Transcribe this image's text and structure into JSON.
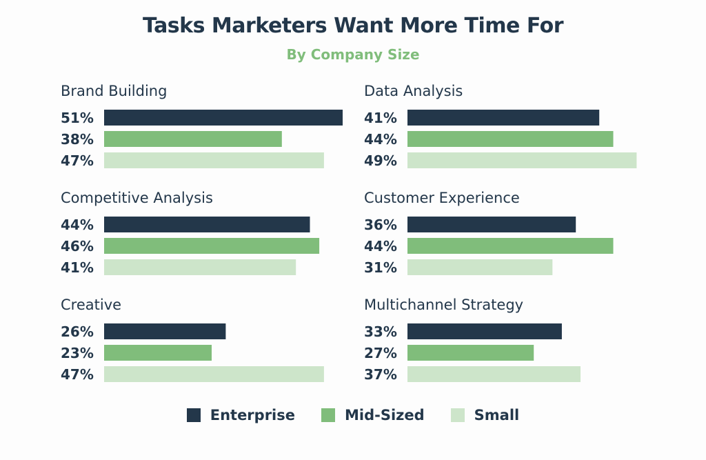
{
  "chart_data": {
    "type": "bar",
    "orientation": "horizontal",
    "title": "Tasks Marketers Want More Time For",
    "subtitle": "By Company Size",
    "value_suffix": "%",
    "xlim": [
      0,
      51
    ],
    "grid": false,
    "legend_position": "bottom-center",
    "series": [
      {
        "name": "Enterprise",
        "color": "#23374a"
      },
      {
        "name": "Mid-Sized",
        "color": "#80bd7b"
      },
      {
        "name": "Small",
        "color": "#cde5ca"
      }
    ],
    "panels": [
      {
        "category": "Brand Building",
        "values": [
          51,
          38,
          47
        ]
      },
      {
        "category": "Data Analysis",
        "values": [
          41,
          44,
          49
        ]
      },
      {
        "category": "Competitive Analysis",
        "values": [
          44,
          46,
          41
        ]
      },
      {
        "category": "Customer Experience",
        "values": [
          36,
          44,
          31
        ]
      },
      {
        "category": "Creative",
        "values": [
          26,
          23,
          47
        ]
      },
      {
        "category": "Multichannel Strategy",
        "values": [
          33,
          27,
          37
        ]
      }
    ]
  },
  "colors": {
    "title": "#23374a",
    "subtitle": "#80bd7b",
    "category_label": "#23374a",
    "value_label": "#23374a"
  }
}
